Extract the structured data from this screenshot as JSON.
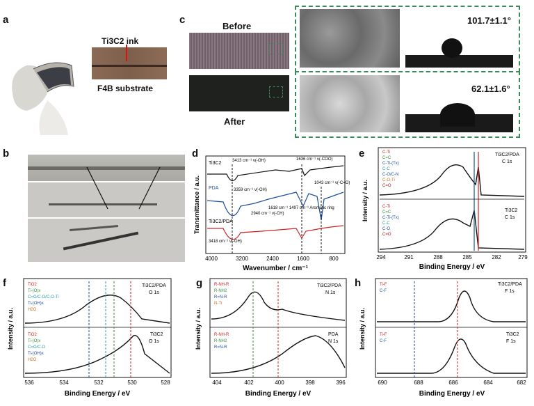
{
  "panels": {
    "a": {
      "letter": "a",
      "ink_label": "Ti3C2 ink",
      "substrate_label": "F4B substrate"
    },
    "b": {
      "letter": "b"
    },
    "c": {
      "letter": "c",
      "before": "Before",
      "after": "After",
      "angle_before": "101.7±1.1°",
      "angle_after": "62.1±1.6°"
    },
    "d": {
      "letter": "d",
      "xlabel": "Wavenumber / cm⁻¹",
      "ylabel": "Transmittance / a.u.",
      "xticks": [
        "4000",
        "3200",
        "2400",
        "1600",
        "800"
      ],
      "series": [
        "Ti3C2",
        "PDA",
        "Ti3C2/PDA"
      ],
      "annotations": [
        "3413 cm⁻¹ ν(-OH)",
        "1636 cm⁻¹ ν(-COO)",
        "3359 cm⁻¹ ν(-OH)",
        "2940 cm⁻¹ ν(-CH)",
        "1618 cm⁻¹ 1497 cm⁻¹ Aromatic ring",
        "1043 cm⁻¹ ν(-C=O)",
        "3418 cm⁻¹ ν(-OH)"
      ]
    },
    "e": {
      "letter": "e",
      "xlabel": "Binding Energy / eV",
      "ylabel": "Intensity / a.u.",
      "xticks": [
        "294",
        "291",
        "288",
        "285",
        "282",
        "279"
      ],
      "top_title": "Ti3C2/PDA",
      "top_sub": "C 1s",
      "bottom_title": "Ti3C2",
      "bottom_sub": "C 1s",
      "top_legend": [
        "C-Ti",
        "C=C",
        "C-Ti-(Tx)",
        "C-C",
        "C-O/C-N",
        "C-O-Ti",
        "C=O"
      ],
      "bottom_legend": [
        "C-Ti",
        "C=C",
        "C-Ti-(Tx)",
        "C-C",
        "C-O",
        "C=O"
      ]
    },
    "f": {
      "letter": "f",
      "xlabel": "Binding Energy / eV",
      "ylabel": "Intensity / a.u.",
      "xticks": [
        "536",
        "534",
        "532",
        "530",
        "528"
      ],
      "top_title": "Ti3C2/PDA",
      "top_sub": "O 1s",
      "bottom_title": "Ti3C2",
      "bottom_sub": "O 1s",
      "top_legend": [
        "TiO2",
        "Ti-(O)x",
        "C=O/C-O/C-O-Ti",
        "Ti-(OH)x",
        "H2O"
      ],
      "bottom_legend": [
        "TiO2",
        "Ti-(O)x",
        "C=O/C-O",
        "Ti-(OH)x",
        "H2O"
      ]
    },
    "g": {
      "letter": "g",
      "xlabel": "Binding Energy / eV",
      "ylabel": "Intensity / a.u.",
      "xticks": [
        "404",
        "402",
        "400",
        "398",
        "396"
      ],
      "top_title": "Ti3C2/PDA",
      "top_sub": "N 1s",
      "bottom_title": "PDA",
      "bottom_sub": "N 1s",
      "top_legend": [
        "R-NH-R",
        "R-NH2",
        "R=N-R",
        "N-Ti"
      ],
      "bottom_legend": [
        "R-NH-R",
        "R-NH2",
        "R=N-R"
      ]
    },
    "h": {
      "letter": "h",
      "xlabel": "Binding Energy / eV",
      "ylabel": "Intensity / a.u.",
      "xticks": [
        "690",
        "688",
        "686",
        "684",
        "682"
      ],
      "top_title": "Ti3C2/PDA",
      "top_sub": "F 1s",
      "bottom_title": "Ti3C2",
      "bottom_sub": "F 1s",
      "top_legend": [
        "Ti-F",
        "C-F"
      ],
      "bottom_legend": [
        "Ti-F",
        "C-F"
      ]
    }
  }
}
